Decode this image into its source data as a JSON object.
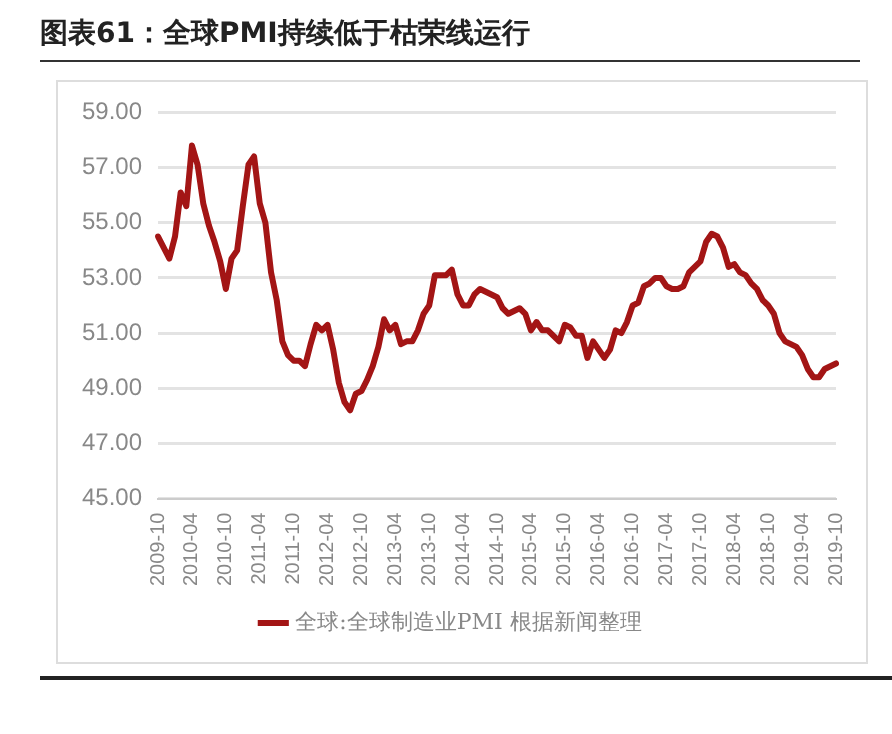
{
  "chart_data": {
    "type": "line",
    "title": "图表61：全球PMI持续低于枯荣线运行",
    "categories": [
      "2009-10",
      null,
      null,
      null,
      null,
      null,
      "2010-04",
      null,
      null,
      null,
      null,
      null,
      "2010-10",
      null,
      null,
      null,
      null,
      null,
      "2011-04",
      null,
      null,
      null,
      null,
      null,
      "2011-10",
      null,
      null,
      null,
      null,
      null,
      "2012-04",
      null,
      null,
      null,
      null,
      null,
      "2012-10",
      null,
      null,
      null,
      null,
      null,
      "2013-04",
      null,
      null,
      null,
      null,
      null,
      "2013-10",
      null,
      null,
      null,
      null,
      null,
      "2014-04",
      null,
      null,
      null,
      null,
      null,
      "2014-10",
      null,
      null,
      null,
      null,
      null,
      "2015-04",
      null,
      null,
      null,
      null,
      null,
      "2015-10",
      null,
      null,
      null,
      null,
      null,
      "2016-04",
      null,
      null,
      null,
      null,
      null,
      "2016-10",
      null,
      null,
      null,
      null,
      null,
      "2017-04",
      null,
      null,
      null,
      null,
      null,
      "2017-10",
      null,
      null,
      null,
      null,
      null,
      "2018-04",
      null,
      null,
      null,
      null,
      null,
      "2018-10",
      null,
      null,
      null,
      null,
      null,
      "2019-04",
      null,
      null,
      null,
      null,
      null,
      "2019-10"
    ],
    "series": [
      {
        "name": "全球:全球制造业PMI 根据新闻整理",
        "color": "#a31515",
        "values": [
          54.5,
          54.1,
          53.7,
          54.5,
          56.1,
          55.6,
          57.8,
          57.1,
          55.7,
          54.9,
          54.3,
          53.6,
          52.6,
          53.7,
          54.0,
          55.6,
          57.1,
          57.4,
          55.7,
          55.0,
          53.2,
          52.2,
          50.7,
          50.2,
          50.0,
          50.0,
          49.8,
          50.6,
          51.3,
          51.1,
          51.3,
          50.4,
          49.2,
          48.5,
          48.2,
          48.8,
          48.9,
          49.3,
          49.8,
          50.5,
          51.5,
          51.1,
          51.3,
          50.6,
          50.7,
          50.7,
          51.1,
          51.7,
          52.0,
          53.1,
          53.1,
          53.1,
          53.3,
          52.4,
          52.0,
          52.0,
          52.4,
          52.6,
          52.5,
          52.4,
          52.3,
          51.9,
          51.7,
          51.8,
          51.9,
          51.7,
          51.1,
          51.4,
          51.1,
          51.1,
          50.9,
          50.7,
          51.3,
          51.2,
          50.9,
          50.9,
          50.1,
          50.7,
          50.4,
          50.1,
          50.4,
          51.1,
          51.0,
          51.4,
          52.0,
          52.1,
          52.7,
          52.8,
          53.0,
          53.0,
          52.7,
          52.6,
          52.6,
          52.7,
          53.2,
          53.4,
          53.6,
          54.3,
          54.6,
          54.5,
          54.1,
          53.4,
          53.5,
          53.2,
          53.1,
          52.8,
          52.6,
          52.2,
          52.0,
          51.7,
          51.0,
          50.7,
          50.6,
          50.5,
          50.2,
          49.7,
          49.4,
          49.4,
          49.7,
          49.8,
          49.9
        ]
      }
    ],
    "ylim": [
      45,
      59
    ],
    "yticks": [
      {
        "value": 45,
        "label": "45.00"
      },
      {
        "value": 47,
        "label": "47.00"
      },
      {
        "value": 49,
        "label": "49.00"
      },
      {
        "value": 51,
        "label": "51.00"
      },
      {
        "value": 53,
        "label": "53.00"
      },
      {
        "value": 55,
        "label": "55.00"
      },
      {
        "value": 57,
        "label": "57.00"
      },
      {
        "value": 59,
        "label": "59.00"
      }
    ],
    "grid": "y",
    "legend": "bottom",
    "marker": "none",
    "line_style": "solid"
  }
}
